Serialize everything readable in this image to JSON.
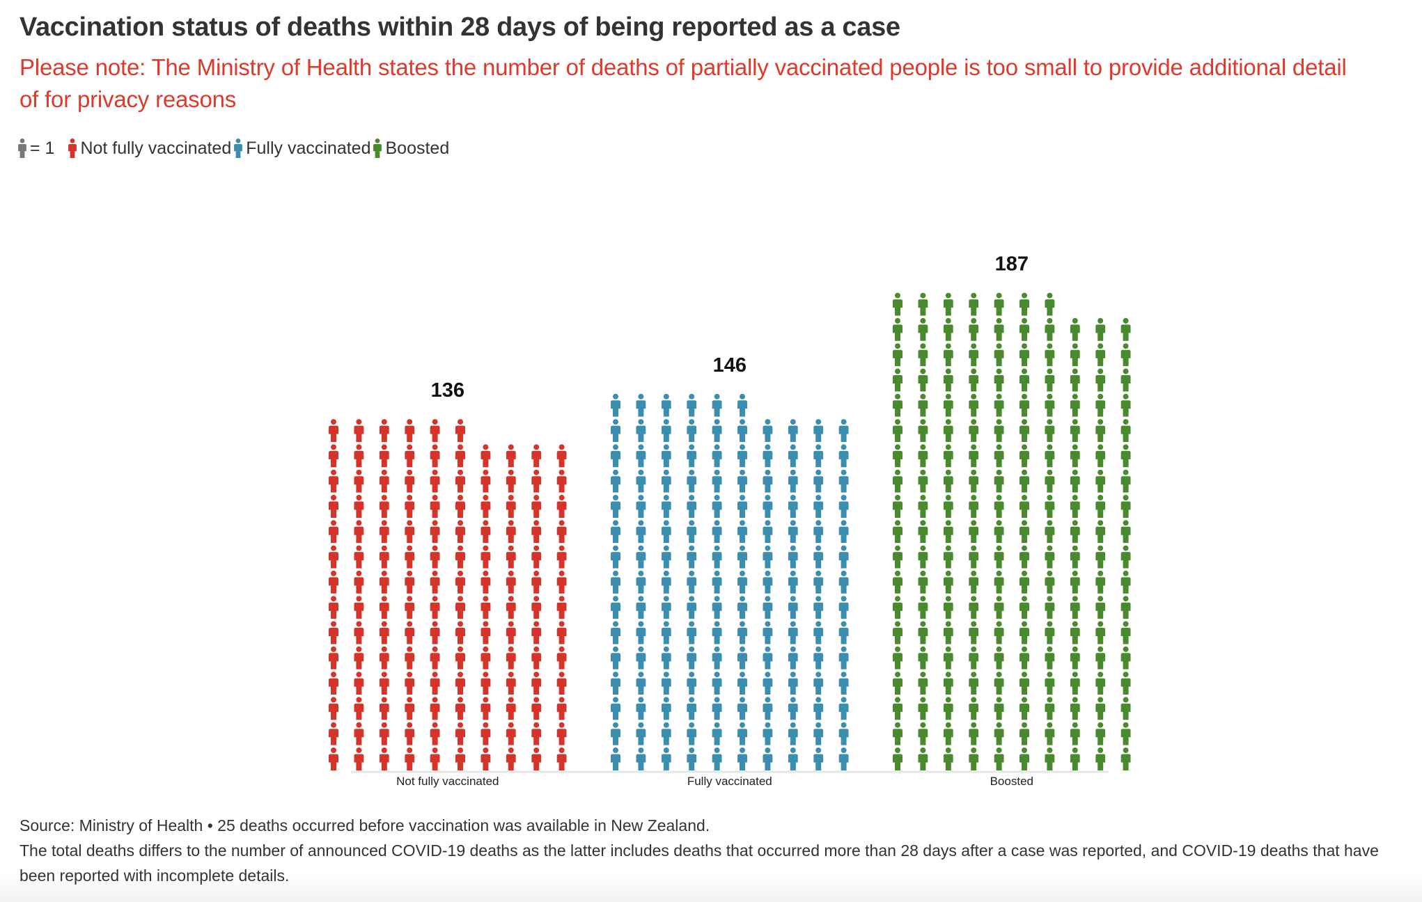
{
  "header": {
    "title": "Vaccination status of deaths within 28 days of being reported as a case",
    "subtitle": "Please note: The Ministry of Health states the number of deaths of partially vaccinated people is too small to provide additional detail of for privacy reasons"
  },
  "legend": {
    "scale_icon": "person-icon",
    "scale_label": "= 1",
    "items": [
      {
        "label": "Not fully vaccinated",
        "icon": "person-icon",
        "color": "#d5342b"
      },
      {
        "label": "Fully vaccinated",
        "icon": "person-icon",
        "color": "#3b8eb0"
      },
      {
        "label": "Boosted",
        "icon": "person-icon",
        "color": "#4a8a2f"
      }
    ]
  },
  "colors": {
    "scale_icon": "#777777",
    "axis": "#e6e6e6"
  },
  "chart_data": {
    "type": "pictogram",
    "title": "Vaccination status of deaths within 28 days of being reported as a case",
    "unit": "1 icon = 1 death",
    "icons_per_row": 10,
    "categories": [
      "Not fully vaccinated",
      "Fully vaccinated",
      "Boosted"
    ],
    "values": [
      136,
      146,
      187
    ],
    "series": [
      {
        "name": "Not fully vaccinated",
        "value": 136,
        "color": "#d5342b"
      },
      {
        "name": "Fully vaccinated",
        "value": 146,
        "color": "#3b8eb0"
      },
      {
        "name": "Boosted",
        "value": 187,
        "color": "#4a8a2f"
      }
    ],
    "xlabel": "",
    "ylabel": "",
    "grid": false,
    "legend": "top-left"
  },
  "footer": {
    "source_line": "Source: Ministry of Health • 25 deaths occurred before vaccination was available in New Zealand.",
    "note": "The total deaths differs to the number of announced COVID-19 deaths as the latter includes deaths that occurred more than 28 days after a case was reported, and COVID-19 deaths that have been reported with incomplete details."
  }
}
